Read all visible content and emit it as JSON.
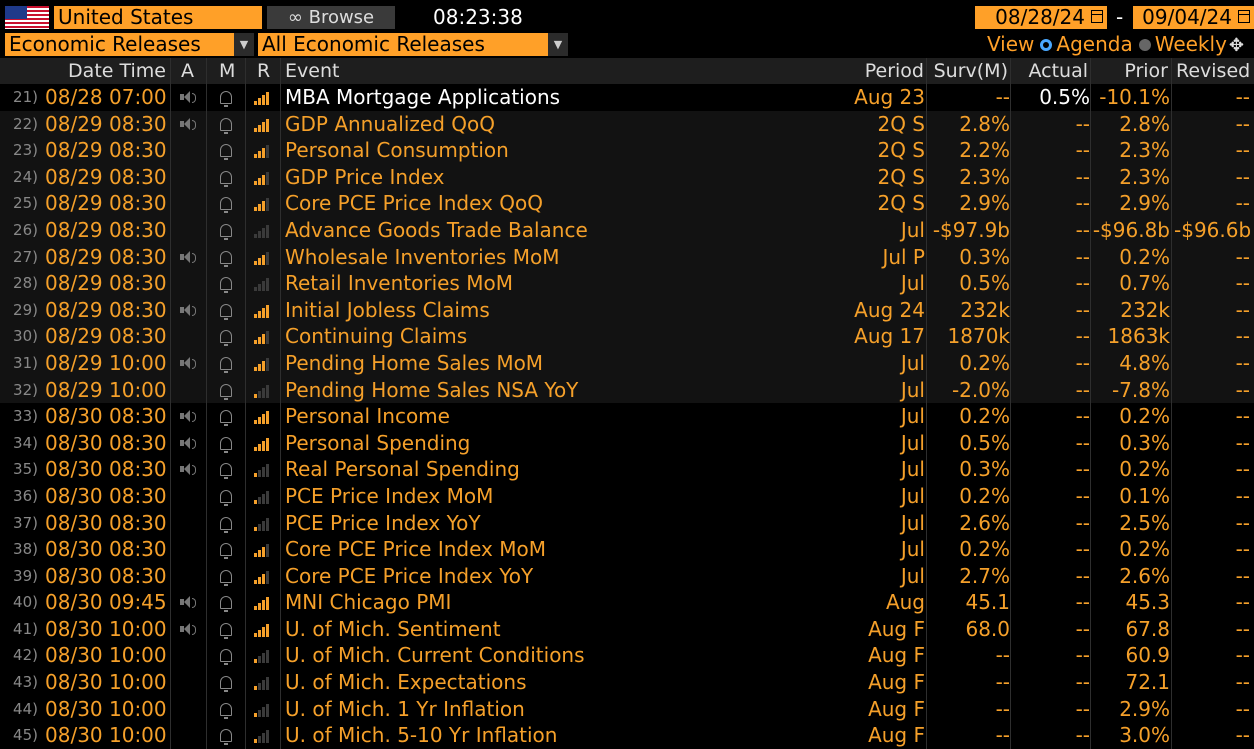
{
  "toolbar": {
    "country": "United States",
    "browse": "Browse",
    "time": "08:23:38",
    "date_from": "08/28/24",
    "date_sep": "-",
    "date_to": "09/04/24",
    "filter1": "Economic Releases",
    "filter2": "All Economic Releases",
    "view_label": "View",
    "view_agenda": "Agenda",
    "view_weekly": "Weekly",
    "flag_icon": "us-flag-icon"
  },
  "columns": {
    "datetime": "Date Time",
    "a": "A",
    "m": "M",
    "r": "R",
    "event": "Event",
    "period": "Period",
    "surv": "Surv(M)",
    "actual": "Actual",
    "prior": "Prior",
    "revised": "Revised"
  },
  "colors": {
    "accent": "#ffa028",
    "text": "#f5a02a",
    "bg": "#000000"
  },
  "rows": [
    {
      "n": "21)",
      "dt": "08/28 07:00",
      "a": true,
      "r": 4,
      "event": "MBA Mortgage Applications",
      "period": "Aug 23",
      "surv": "--",
      "actual": "0.5%",
      "prior": "-10.1%",
      "revised": "--",
      "highlight": true
    },
    {
      "n": "22)",
      "dt": "08/29 08:30",
      "a": true,
      "r": 4,
      "event": "GDP Annualized QoQ",
      "period": "2Q S",
      "surv": "2.8%",
      "actual": "--",
      "prior": "2.8%",
      "revised": "--"
    },
    {
      "n": "23)",
      "dt": "08/29 08:30",
      "a": false,
      "r": 3,
      "event": "Personal Consumption",
      "period": "2Q S",
      "surv": "2.2%",
      "actual": "--",
      "prior": "2.3%",
      "revised": "--"
    },
    {
      "n": "24)",
      "dt": "08/29 08:30",
      "a": false,
      "r": 3,
      "event": "GDP Price Index",
      "period": "2Q S",
      "surv": "2.3%",
      "actual": "--",
      "prior": "2.3%",
      "revised": "--"
    },
    {
      "n": "25)",
      "dt": "08/29 08:30",
      "a": false,
      "r": 3,
      "event": "Core PCE Price Index QoQ",
      "period": "2Q S",
      "surv": "2.9%",
      "actual": "--",
      "prior": "2.9%",
      "revised": "--"
    },
    {
      "n": "26)",
      "dt": "08/29 08:30",
      "a": false,
      "r": 0,
      "event": "Advance Goods Trade Balance",
      "period": "Jul",
      "surv": "-$97.9b",
      "actual": "--",
      "prior": "-$96.8b",
      "revised": "-$96.6b"
    },
    {
      "n": "27)",
      "dt": "08/29 08:30",
      "a": true,
      "r": 3,
      "event": "Wholesale Inventories MoM",
      "period": "Jul P",
      "surv": "0.3%",
      "actual": "--",
      "prior": "0.2%",
      "revised": "--"
    },
    {
      "n": "28)",
      "dt": "08/29 08:30",
      "a": false,
      "r": 0,
      "event": "Retail Inventories MoM",
      "period": "Jul",
      "surv": "0.5%",
      "actual": "--",
      "prior": "0.7%",
      "revised": "--"
    },
    {
      "n": "29)",
      "dt": "08/29 08:30",
      "a": true,
      "r": 4,
      "event": "Initial Jobless Claims",
      "period": "Aug 24",
      "surv": "232k",
      "actual": "--",
      "prior": "232k",
      "revised": "--"
    },
    {
      "n": "30)",
      "dt": "08/29 08:30",
      "a": false,
      "r": 3,
      "event": "Continuing Claims",
      "period": "Aug 17",
      "surv": "1870k",
      "actual": "--",
      "prior": "1863k",
      "revised": "--"
    },
    {
      "n": "31)",
      "dt": "08/29 10:00",
      "a": true,
      "r": 3,
      "event": "Pending Home Sales MoM",
      "period": "Jul",
      "surv": "0.2%",
      "actual": "--",
      "prior": "4.8%",
      "revised": "--"
    },
    {
      "n": "32)",
      "dt": "08/29 10:00",
      "a": false,
      "r": 1,
      "event": "Pending Home Sales NSA YoY",
      "period": "Jul",
      "surv": "-2.0%",
      "actual": "--",
      "prior": "-7.8%",
      "revised": "--"
    },
    {
      "n": "33)",
      "dt": "08/30 08:30",
      "a": true,
      "r": 4,
      "event": "Personal Income",
      "period": "Jul",
      "surv": "0.2%",
      "actual": "--",
      "prior": "0.2%",
      "revised": "--"
    },
    {
      "n": "34)",
      "dt": "08/30 08:30",
      "a": true,
      "r": 4,
      "event": "Personal Spending",
      "period": "Jul",
      "surv": "0.5%",
      "actual": "--",
      "prior": "0.3%",
      "revised": "--"
    },
    {
      "n": "35)",
      "dt": "08/30 08:30",
      "a": true,
      "r": 1,
      "event": "Real Personal Spending",
      "period": "Jul",
      "surv": "0.3%",
      "actual": "--",
      "prior": "0.2%",
      "revised": "--"
    },
    {
      "n": "36)",
      "dt": "08/30 08:30",
      "a": false,
      "r": 1,
      "event": "PCE Price Index MoM",
      "period": "Jul",
      "surv": "0.2%",
      "actual": "--",
      "prior": "0.1%",
      "revised": "--"
    },
    {
      "n": "37)",
      "dt": "08/30 08:30",
      "a": false,
      "r": 1,
      "event": "PCE Price Index YoY",
      "period": "Jul",
      "surv": "2.6%",
      "actual": "--",
      "prior": "2.5%",
      "revised": "--"
    },
    {
      "n": "38)",
      "dt": "08/30 08:30",
      "a": false,
      "r": 3,
      "event": "Core PCE Price Index MoM",
      "period": "Jul",
      "surv": "0.2%",
      "actual": "--",
      "prior": "0.2%",
      "revised": "--"
    },
    {
      "n": "39)",
      "dt": "08/30 08:30",
      "a": false,
      "r": 3,
      "event": "Core PCE Price Index YoY",
      "period": "Jul",
      "surv": "2.7%",
      "actual": "--",
      "prior": "2.6%",
      "revised": "--"
    },
    {
      "n": "40)",
      "dt": "08/30 09:45",
      "a": true,
      "r": 4,
      "event": "MNI Chicago PMI",
      "period": "Aug",
      "surv": "45.1",
      "actual": "--",
      "prior": "45.3",
      "revised": "--"
    },
    {
      "n": "41)",
      "dt": "08/30 10:00",
      "a": true,
      "r": 4,
      "event": "U. of Mich. Sentiment",
      "period": "Aug F",
      "surv": "68.0",
      "actual": "--",
      "prior": "67.8",
      "revised": "--"
    },
    {
      "n": "42)",
      "dt": "08/30 10:00",
      "a": false,
      "r": 1,
      "event": "U. of Mich. Current Conditions",
      "period": "Aug F",
      "surv": "--",
      "actual": "--",
      "prior": "60.9",
      "revised": "--"
    },
    {
      "n": "43)",
      "dt": "08/30 10:00",
      "a": false,
      "r": 1,
      "event": "U. of Mich. Expectations",
      "period": "Aug F",
      "surv": "--",
      "actual": "--",
      "prior": "72.1",
      "revised": "--"
    },
    {
      "n": "44)",
      "dt": "08/30 10:00",
      "a": false,
      "r": 1,
      "event": "U. of Mich. 1 Yr Inflation",
      "period": "Aug F",
      "surv": "--",
      "actual": "--",
      "prior": "2.9%",
      "revised": "--"
    },
    {
      "n": "45)",
      "dt": "08/30 10:00",
      "a": false,
      "r": 1,
      "event": "U. of Mich. 5-10 Yr Inflation",
      "period": "Aug F",
      "surv": "--",
      "actual": "--",
      "prior": "3.0%",
      "revised": "--"
    }
  ]
}
